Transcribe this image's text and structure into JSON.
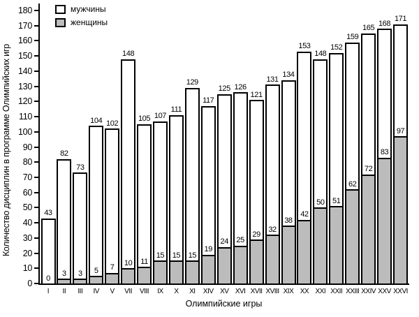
{
  "chart_data": {
    "type": "bar",
    "mode": "overlay",
    "title": "",
    "xlabel": "Олимпийские игры",
    "ylabel": "Количество дисциплин в программе Олимпийских игр",
    "ylim": [
      0,
      180
    ],
    "ytick_step": 10,
    "yticks": [
      0,
      10,
      20,
      30,
      40,
      50,
      60,
      70,
      80,
      90,
      100,
      110,
      120,
      130,
      140,
      150,
      160,
      170,
      180
    ],
    "grid": false,
    "legend_position": "top-left",
    "categories": [
      "I",
      "II",
      "III",
      "IV",
      "V",
      "VII",
      "VIII",
      "IX",
      "X",
      "XI",
      "XIV",
      "XV",
      "XVI",
      "XVII",
      "XVIII",
      "XIX",
      "XX",
      "XXI",
      "XXII",
      "XXIII",
      "XXIV",
      "XXV",
      "XXVI"
    ],
    "series": [
      {
        "name": "мужчины",
        "color": "#ffffff",
        "values": [
          43,
          82,
          73,
          104,
          102,
          148,
          105,
          107,
          111,
          129,
          117,
          125,
          126,
          121,
          131,
          134,
          153,
          148,
          152,
          159,
          165,
          168,
          171
        ]
      },
      {
        "name": "женщины",
        "color": "#bcbcbc",
        "values": [
          0,
          3,
          3,
          5,
          7,
          10,
          11,
          15,
          15,
          15,
          19,
          24,
          25,
          29,
          32,
          38,
          42,
          50,
          51,
          62,
          72,
          83,
          97
        ]
      }
    ],
    "bar_border_color": "#000000"
  }
}
